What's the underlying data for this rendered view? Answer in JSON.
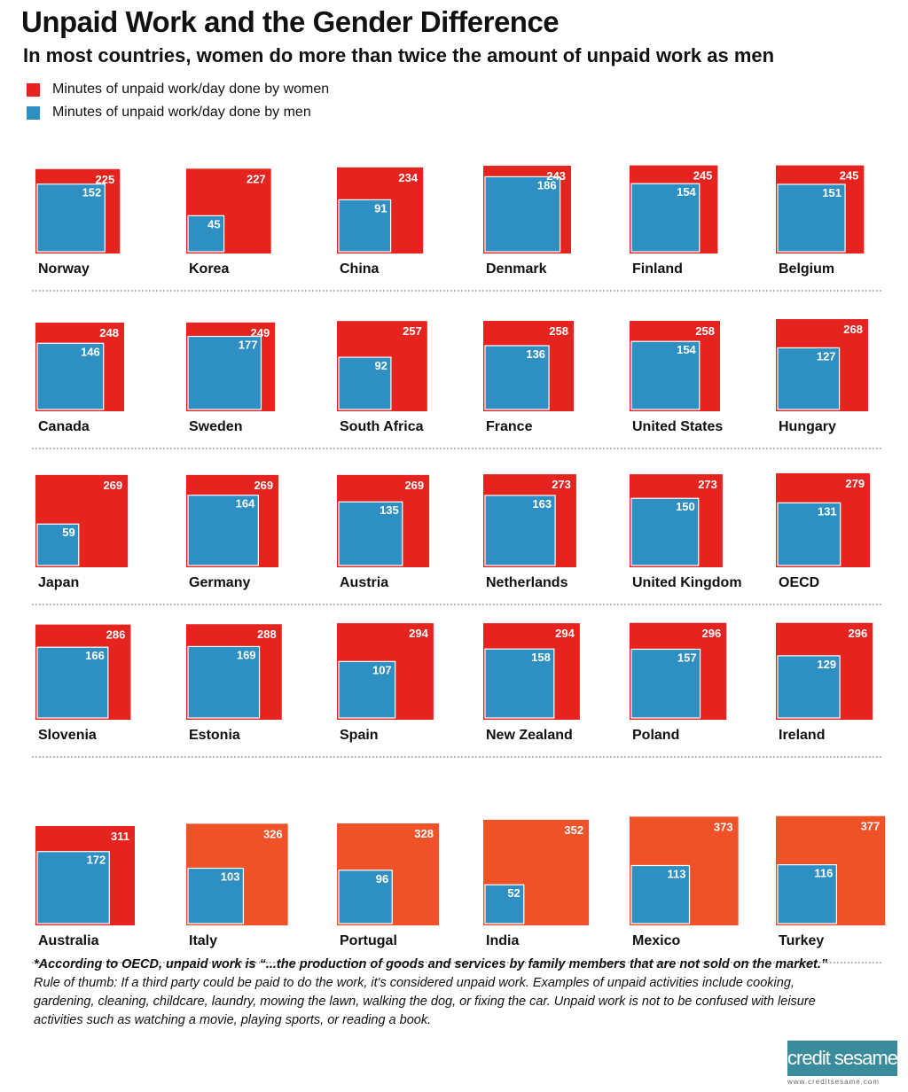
{
  "title": "Unpaid Work and the Gender Difference",
  "subtitle": "In most countries, women do more than twice the amount of unpaid work as men",
  "legend": {
    "women": "Minutes of unpaid work/day done by women",
    "men": "Minutes of unpaid work/day done by men"
  },
  "colors": {
    "women": "#e5231f",
    "women_high": "#f05228",
    "men": "#2e8fc3"
  },
  "chart_data": {
    "type": "nested-square-area",
    "series": [
      {
        "name": "Minutes of unpaid work/day done by women",
        "values": [
          225,
          227,
          234,
          243,
          245,
          245,
          248,
          249,
          257,
          258,
          258,
          268,
          269,
          269,
          269,
          273,
          273,
          279,
          286,
          288,
          294,
          294,
          296,
          296,
          311,
          326,
          328,
          352,
          373,
          377
        ]
      },
      {
        "name": "Minutes of unpaid work/day done by men",
        "values": [
          152,
          45,
          91,
          186,
          154,
          151,
          146,
          177,
          92,
          136,
          154,
          127,
          59,
          164,
          135,
          163,
          150,
          131,
          166,
          169,
          107,
          158,
          157,
          129,
          172,
          103,
          96,
          52,
          113,
          116
        ]
      }
    ],
    "categories": [
      "Norway",
      "Korea",
      "China",
      "Denmark",
      "Finland",
      "Belgium",
      "Canada",
      "Sweden",
      "South Africa",
      "France",
      "United States",
      "Hungary",
      "Japan",
      "Germany",
      "Austria",
      "Netherlands",
      "United Kingdom",
      "OECD",
      "Slovenia",
      "Estonia",
      "Spain",
      "New Zealand",
      "Poland",
      "Ireland",
      "Australia",
      "Italy",
      "Portugal",
      "India",
      "Mexico",
      "Turkey"
    ],
    "countries": [
      {
        "name": "Norway",
        "women": 225,
        "men": 152
      },
      {
        "name": "Korea",
        "women": 227,
        "men": 45
      },
      {
        "name": "China",
        "women": 234,
        "men": 91
      },
      {
        "name": "Denmark",
        "women": 243,
        "men": 186
      },
      {
        "name": "Finland",
        "women": 245,
        "men": 154
      },
      {
        "name": "Belgium",
        "women": 245,
        "men": 151
      },
      {
        "name": "Canada",
        "women": 248,
        "men": 146
      },
      {
        "name": "Sweden",
        "women": 249,
        "men": 177
      },
      {
        "name": "South Africa",
        "women": 257,
        "men": 92
      },
      {
        "name": "France",
        "women": 258,
        "men": 136
      },
      {
        "name": "United States",
        "women": 258,
        "men": 154
      },
      {
        "name": "Hungary",
        "women": 268,
        "men": 127
      },
      {
        "name": "Japan",
        "women": 269,
        "men": 59
      },
      {
        "name": "Germany",
        "women": 269,
        "men": 164
      },
      {
        "name": "Austria",
        "women": 269,
        "men": 135
      },
      {
        "name": "Netherlands",
        "women": 273,
        "men": 163
      },
      {
        "name": "United Kingdom",
        "women": 273,
        "men": 150
      },
      {
        "name": "OECD",
        "women": 279,
        "men": 131
      },
      {
        "name": "Slovenia",
        "women": 286,
        "men": 166
      },
      {
        "name": "Estonia",
        "women": 288,
        "men": 169
      },
      {
        "name": "Spain",
        "women": 294,
        "men": 107
      },
      {
        "name": "New Zealand",
        "women": 294,
        "men": 158
      },
      {
        "name": "Poland",
        "women": 296,
        "men": 157
      },
      {
        "name": "Ireland",
        "women": 296,
        "men": 129
      },
      {
        "name": "Australia",
        "women": 311,
        "men": 172
      },
      {
        "name": "Italy",
        "women": 326,
        "men": 103
      },
      {
        "name": "Portugal",
        "women": 328,
        "men": 96
      },
      {
        "name": "India",
        "women": 352,
        "men": 52
      },
      {
        "name": "Mexico",
        "women": 373,
        "men": 113
      },
      {
        "name": "Turkey",
        "women": 377,
        "men": 116
      }
    ]
  },
  "footnote": {
    "lead": "*According to OECD, unpaid work is “...the production of goods and services by family members that are not sold on the market.”",
    "line2": "Rule of thumb: If a third party could be paid to do the work, it's considered unpaid work. Examples of unpaid activities include cooking,",
    "line3": "gardening, cleaning, childcare, laundry, mowing the lawn, walking the dog, or fixing the car. Unpaid work is not to be confused with leisure",
    "line4": "activities such as watching a movie, playing sports, or reading a book."
  },
  "logo": {
    "text": "credit sesame",
    "url": "www.creditsesame.com"
  }
}
